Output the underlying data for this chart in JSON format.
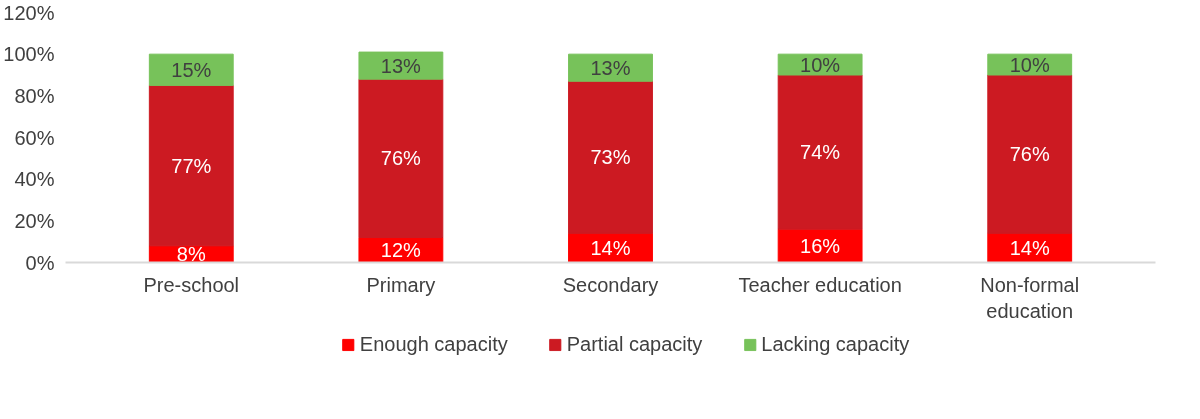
{
  "chart_data": {
    "type": "bar",
    "stacked": true,
    "categories": [
      "Pre-school",
      "Primary",
      "Secondary",
      "Teacher education",
      "Non-formal education"
    ],
    "series": [
      {
        "name": "Enough capacity",
        "color": "#ff0000",
        "values": [
          8,
          12,
          14,
          16,
          14
        ],
        "value_labels": [
          "8%",
          "12%",
          "14%",
          "16%",
          "14%"
        ]
      },
      {
        "name": "Partial capacity",
        "color": "#cc1a22",
        "values": [
          77,
          76,
          73,
          74,
          76
        ],
        "value_labels": [
          "77%",
          "76%",
          "73%",
          "74%",
          "76%"
        ]
      },
      {
        "name": "Lacking capacity",
        "color": "#77c25a",
        "values": [
          15,
          13,
          13,
          10,
          10
        ],
        "value_labels": [
          "15%",
          "13%",
          "13%",
          "10%",
          "10%"
        ]
      }
    ],
    "ylim": [
      0,
      120
    ],
    "yticks": [
      {
        "value": 0,
        "label": "0%"
      },
      {
        "value": 20,
        "label": "20%"
      },
      {
        "value": 40,
        "label": "40%"
      },
      {
        "value": 60,
        "label": "60%"
      },
      {
        "value": 80,
        "label": "80%"
      },
      {
        "value": 100,
        "label": "100%"
      },
      {
        "value": 120,
        "label": "120%"
      }
    ],
    "grid": false,
    "legend": "bottom"
  }
}
